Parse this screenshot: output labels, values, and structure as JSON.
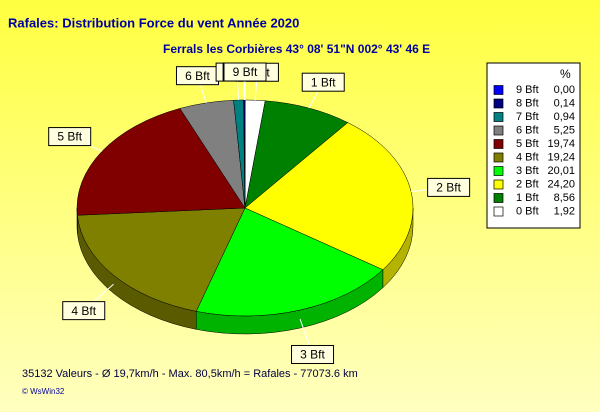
{
  "chart_data": {
    "type": "pie",
    "title": "Rafales: Distribution Force du vent  Année 2020",
    "subtitle": "Ferrals les Corbières 43° 08' 51\"N  002° 43' 46 E",
    "legend_header": "%",
    "categories": [
      "9 Bft",
      "8 Bft",
      "7 Bft",
      "6 Bft",
      "5 Bft",
      "4 Bft",
      "3 Bft",
      "2 Bft",
      "1 Bft",
      "0 Bft"
    ],
    "values": [
      0.0,
      0.14,
      0.94,
      5.25,
      19.74,
      19.24,
      20.01,
      24.2,
      8.56,
      1.92
    ],
    "value_labels": [
      "0,00",
      "0,14",
      "0,94",
      "5,25",
      "19,74",
      "19,24",
      "20,01",
      "24,20",
      "8,56",
      "1,92"
    ],
    "colors": [
      "#0000ff",
      "#000080",
      "#008080",
      "#808080",
      "#800000",
      "#808000",
      "#00ff00",
      "#ffff00",
      "#008000",
      "#ffffff"
    ],
    "legend": "right",
    "footer": "35132 Valeurs   -   Ø 19,7km/h  -  Max. 80,5km/h = Rafales   -   77073.6 km",
    "credit": "© WsWin32"
  }
}
